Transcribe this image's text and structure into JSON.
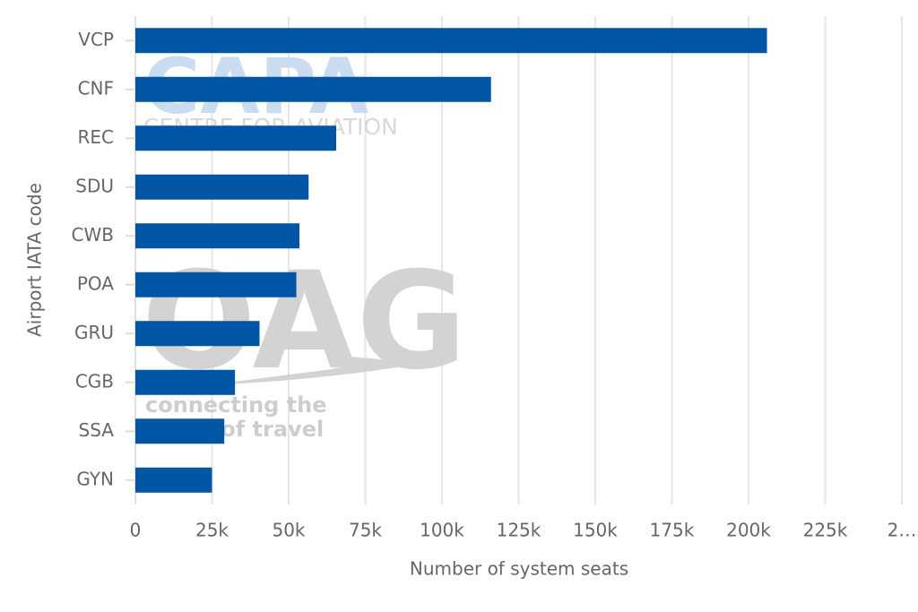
{
  "chart_data": {
    "type": "bar",
    "orientation": "horizontal",
    "x_label": "Number of system seats",
    "y_label": "Airport IATA code",
    "categories": [
      "VCP",
      "CNF",
      "REC",
      "SDU",
      "CWB",
      "POA",
      "GRU",
      "CGB",
      "SSA",
      "GYN"
    ],
    "values": [
      206000,
      116000,
      65500,
      56500,
      53500,
      52500,
      40500,
      32500,
      29000,
      25000
    ],
    "color": "#0055a5",
    "xlim": [
      0,
      250000
    ],
    "xticks": [
      0,
      {
        "value": 25000,
        "label": "25k"
      },
      {
        "value": 50000,
        "label": "50k"
      },
      {
        "value": 75000,
        "label": "75k"
      },
      {
        "value": 100000,
        "label": "100k"
      },
      {
        "value": 125000,
        "label": "125k"
      },
      {
        "value": 150000,
        "label": "150k"
      },
      {
        "value": 175000,
        "label": "175k"
      },
      {
        "value": 200000,
        "label": "200k"
      },
      {
        "value": 225000,
        "label": "225k"
      },
      {
        "value": 250000,
        "label": "2…"
      }
    ],
    "grid": true,
    "watermarks": [
      "CAPA",
      "CENTRE FOR AVIATION",
      "OAG",
      "connecting the",
      "world of travel"
    ]
  }
}
